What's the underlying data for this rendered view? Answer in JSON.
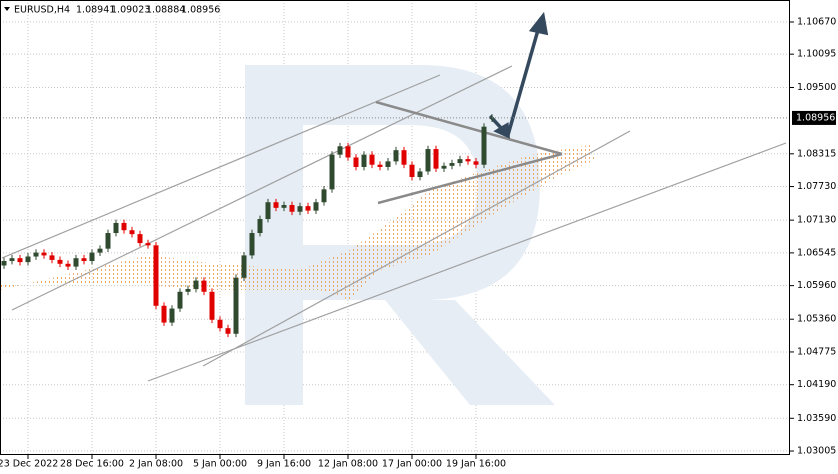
{
  "chart_data": {
    "type": "candlestick",
    "title": "EURUSD,H4",
    "ohlc": {
      "open": [
        1.0632,
        1.064,
        1.0645,
        1.0638,
        1.0648,
        1.0655,
        1.065,
        1.0642,
        1.0635,
        1.063,
        1.0645,
        1.064,
        1.0655,
        1.0662,
        1.069,
        1.0708,
        1.0695,
        1.0688,
        1.0672,
        1.0668,
        1.056,
        1.053,
        1.0555,
        1.0585,
        1.059,
        1.0605,
        1.0585,
        1.0535,
        1.052,
        1.051,
        1.061,
        1.065,
        1.069,
        1.0715,
        1.0745,
        1.0735,
        1.074,
        1.0728,
        1.0738,
        1.073,
        1.0745,
        1.0768,
        1.083,
        1.0845,
        1.0825,
        1.0808,
        1.083,
        1.0812,
        1.0808,
        1.0818,
        1.0838,
        1.0812,
        1.079,
        1.08,
        1.084,
        1.0805,
        1.081,
        1.0815,
        1.0822,
        1.0818,
        1.0812,
        1.08941
      ],
      "high": [
        1.0646,
        1.0651,
        1.0651,
        1.0654,
        1.0661,
        1.0661,
        1.0656,
        1.0648,
        1.0641,
        1.0651,
        1.0651,
        1.0661,
        1.0668,
        1.0696,
        1.0714,
        1.0714,
        1.0701,
        1.0694,
        1.0678,
        1.0674,
        1.0566,
        1.0561,
        1.0591,
        1.0596,
        1.0611,
        1.0611,
        1.0591,
        1.0541,
        1.0526,
        1.0616,
        1.0656,
        1.0696,
        1.0721,
        1.0751,
        1.0751,
        1.0746,
        1.0746,
        1.0744,
        1.0744,
        1.0751,
        1.0774,
        1.0836,
        1.0851,
        1.0851,
        1.0831,
        1.0836,
        1.0836,
        1.0818,
        1.0824,
        1.0844,
        1.0844,
        1.0818,
        1.0806,
        1.0846,
        1.0846,
        1.0816,
        1.0821,
        1.0828,
        1.0828,
        1.0824,
        1.0886,
        1.09023
      ],
      "low": [
        1.0626,
        1.0634,
        1.0632,
        1.0632,
        1.0642,
        1.0644,
        1.0636,
        1.0629,
        1.0624,
        1.0624,
        1.0634,
        1.0634,
        1.0649,
        1.0656,
        1.0684,
        1.0689,
        1.0682,
        1.0666,
        1.0662,
        1.0554,
        1.0524,
        1.0524,
        1.0549,
        1.0579,
        1.0584,
        1.0579,
        1.0529,
        1.0514,
        1.0504,
        1.0504,
        1.0604,
        1.0644,
        1.0684,
        1.0709,
        1.0729,
        1.0729,
        1.0722,
        1.0722,
        1.0724,
        1.0724,
        1.0739,
        1.0762,
        1.0824,
        1.0819,
        1.0802,
        1.0802,
        1.0806,
        1.0802,
        1.0802,
        1.0812,
        1.0806,
        1.0784,
        1.0784,
        1.0794,
        1.0799,
        1.0799,
        1.0804,
        1.0809,
        1.0812,
        1.0806,
        1.0806,
        1.08884
      ],
      "close": [
        1.064,
        1.0645,
        1.0638,
        1.0648,
        1.0655,
        1.065,
        1.0642,
        1.0635,
        1.063,
        1.0645,
        1.064,
        1.0655,
        1.0662,
        1.069,
        1.0708,
        1.0695,
        1.0688,
        1.0672,
        1.0668,
        1.056,
        1.053,
        1.0555,
        1.0585,
        1.059,
        1.0605,
        1.0585,
        1.0535,
        1.052,
        1.051,
        1.061,
        1.065,
        1.069,
        1.0715,
        1.0745,
        1.0735,
        1.074,
        1.0728,
        1.0738,
        1.073,
        1.0745,
        1.0768,
        1.083,
        1.0845,
        1.0825,
        1.0808,
        1.083,
        1.0812,
        1.0808,
        1.0818,
        1.0838,
        1.0812,
        1.079,
        1.08,
        1.084,
        1.0805,
        1.081,
        1.0815,
        1.0822,
        1.0818,
        1.0812,
        1.088,
        1.08956
      ]
    },
    "up_color": "#2f4a2f",
    "down_color": "#e00000",
    "xlim": [
      -0.5,
      98.25
    ],
    "xticks": [
      {
        "value": 3,
        "label": "23 Dec 2022"
      },
      {
        "value": 11,
        "label": "28 Dec 16:00"
      },
      {
        "value": 19,
        "label": "2 Jan 08:00"
      },
      {
        "value": 27,
        "label": "5 Jan 00:00"
      },
      {
        "value": 35,
        "label": "9 Jan 16:00"
      },
      {
        "value": 43,
        "label": "12 Jan 08:00"
      },
      {
        "value": 51,
        "label": "17 Jan 00:00"
      },
      {
        "value": 59,
        "label": "19 Jan 16:00"
      }
    ],
    "ylim": [
      1.02934,
      1.11063
    ],
    "yticks": [
      {
        "value": 1.1067,
        "label": "1.10670"
      },
      1.10095,
      {
        "value": 1.095,
        "label": "1.09500"
      },
      1.08315,
      {
        "value": 1.0773,
        "label": "1.07730"
      },
      {
        "value": 1.0713,
        "label": "1.07130"
      },
      1.06545,
      {
        "value": 1.0596,
        "label": "1.05960"
      },
      {
        "value": 1.0536,
        "label": "1.05360"
      },
      1.04775,
      {
        "value": 1.0419,
        "label": "1.04190"
      },
      {
        "value": 1.0359,
        "label": "1.03590"
      },
      1.03005
    ],
    "grid": true
  }
}
